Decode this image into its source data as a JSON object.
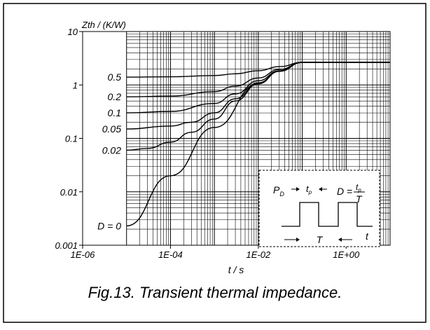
{
  "caption": "Fig.13.  Transient thermal impedance.",
  "chart_data": {
    "type": "line",
    "ylabel": "Zth / (K/W)",
    "xlabel": "t / s",
    "x_scale": "log",
    "y_scale": "log",
    "xlim": [
      1e-06,
      10
    ],
    "ylim": [
      0.001,
      10
    ],
    "x_ticks": [
      1e-06,
      0.0001,
      0.01,
      1
    ],
    "x_tick_labels": [
      "1E-06",
      "1E-04",
      "1E-02",
      "1E+00"
    ],
    "y_ticks": [
      0.001,
      0.01,
      0.1,
      1,
      10
    ],
    "y_tick_labels": [
      "0.001",
      "0.01",
      "0.1",
      "1",
      "10"
    ],
    "grid": true,
    "series": [
      {
        "name": "0.5",
        "x": [
          1e-05,
          0.0001,
          0.001,
          0.003,
          0.01,
          0.03,
          0.1,
          10
        ],
        "y": [
          1.4,
          1.42,
          1.5,
          1.62,
          1.85,
          2.2,
          2.65,
          2.65
        ]
      },
      {
        "name": "0.2",
        "x": [
          1e-05,
          0.0001,
          0.001,
          0.003,
          0.01,
          0.03,
          0.1,
          10
        ],
        "y": [
          0.6,
          0.62,
          0.75,
          0.95,
          1.35,
          1.95,
          2.65,
          2.65
        ]
      },
      {
        "name": "0.1",
        "x": [
          1e-05,
          0.0001,
          0.001,
          0.003,
          0.01,
          0.03,
          0.1,
          10
        ],
        "y": [
          0.3,
          0.32,
          0.45,
          0.68,
          1.2,
          1.85,
          2.65,
          2.65
        ]
      },
      {
        "name": "0.05",
        "x": [
          1e-05,
          0.0001,
          0.0003,
          0.001,
          0.003,
          0.01,
          0.03,
          0.1,
          10
        ],
        "y": [
          0.15,
          0.17,
          0.2,
          0.3,
          0.55,
          1.1,
          1.8,
          2.65,
          2.65
        ]
      },
      {
        "name": "0.02",
        "x": [
          1e-05,
          3e-05,
          0.0001,
          0.0003,
          0.001,
          0.003,
          0.01,
          0.03,
          0.1,
          10
        ],
        "y": [
          0.06,
          0.065,
          0.085,
          0.13,
          0.23,
          0.5,
          1.05,
          1.8,
          2.65,
          2.65
        ]
      },
      {
        "name": "D = 0",
        "x": [
          1e-05,
          0.0001,
          0.001,
          0.01,
          0.03,
          0.1,
          10
        ],
        "y": [
          0.0023,
          0.02,
          0.16,
          1.05,
          1.8,
          2.65,
          2.65
        ]
      }
    ],
    "inset": {
      "pd_label": "P",
      "pd_sub": "D",
      "tp_label": "t",
      "tp_sub": "p",
      "d_label": "D =",
      "frac_num": "t",
      "frac_num_sub": "p",
      "frac_den": "T",
      "t_axis_label": "t",
      "period_label": "T"
    }
  }
}
